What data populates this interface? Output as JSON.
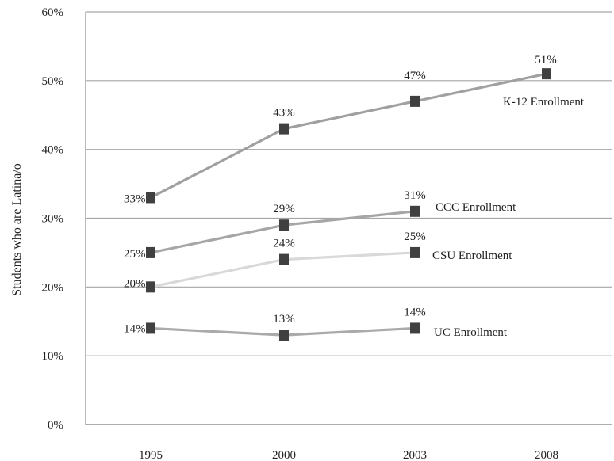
{
  "chart_data": {
    "type": "line",
    "title": "",
    "xlabel": "",
    "ylabel": "Students who are Latina/o",
    "categories": [
      "1995",
      "2000",
      "2003",
      "2008"
    ],
    "y_ticks": [
      "0%",
      "10%",
      "20%",
      "30%",
      "40%",
      "50%",
      "60%"
    ],
    "ylim": [
      0,
      60
    ],
    "grid": "horizontal",
    "series": [
      {
        "name": "K-12 Enrollment",
        "values": [
          33,
          43,
          47,
          51
        ],
        "labels": [
          "33%",
          "43%",
          "47%",
          "51%"
        ],
        "color": "#a0a0a0"
      },
      {
        "name": "CCC Enrollment",
        "values": [
          25,
          29,
          31,
          null
        ],
        "labels": [
          "25%",
          "29%",
          "31%",
          ""
        ],
        "color": "#a6a6a6"
      },
      {
        "name": "CSU Enrollment",
        "values": [
          20,
          24,
          25,
          null
        ],
        "labels": [
          "20%",
          "24%",
          "25%",
          ""
        ],
        "color": "#d9d9d9"
      },
      {
        "name": "UC Enrollment",
        "values": [
          14,
          13,
          14,
          null
        ],
        "labels": [
          "14%",
          "13%",
          "14%",
          ""
        ],
        "color": "#aaaaaa"
      }
    ],
    "marker_color": "#404040"
  }
}
